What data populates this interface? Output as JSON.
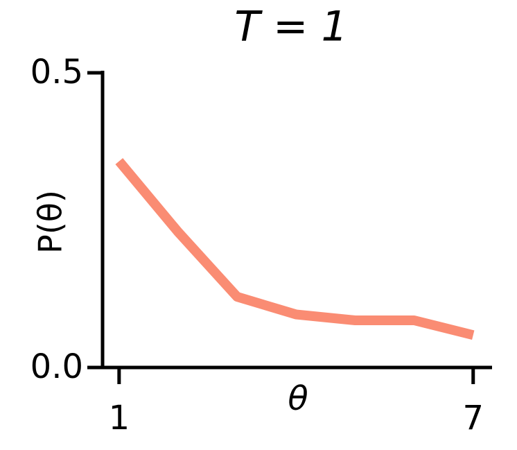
{
  "chart_data": {
    "type": "line",
    "title": "T = 1",
    "x_label": "θ",
    "y_label": "P(θ)",
    "x": [
      1,
      2,
      3,
      4,
      5,
      6,
      7
    ],
    "series": [
      {
        "color": "#fa8c73",
        "values": [
          0.35,
          0.23,
          0.12,
          0.09,
          0.08,
          0.08,
          0.055
        ]
      }
    ],
    "xlim": [
      0.72,
      7.32
    ],
    "ylim": [
      0,
      0.5
    ],
    "xticks": [
      1,
      7
    ],
    "yticks": [
      {
        "value": 0,
        "label": "0.0"
      },
      0.5
    ]
  }
}
